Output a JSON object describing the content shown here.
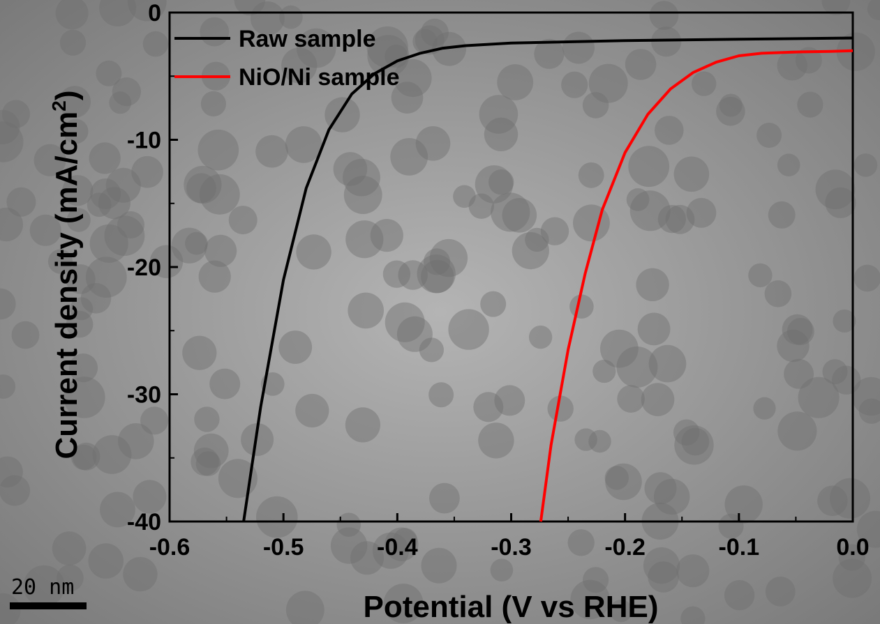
{
  "chart_data": {
    "type": "line",
    "xlabel": "Potential (V vs RHE)",
    "ylabel": "Current density (mA/cm",
    "ylabel_superscript": "2",
    "ylabel_close": ")",
    "xlim": [
      -0.6,
      0.0
    ],
    "ylim": [
      -40,
      0
    ],
    "x_ticks": [
      "-0.6",
      "-0.5",
      "-0.4",
      "-0.3",
      "-0.2",
      "-0.1",
      "0.0"
    ],
    "y_ticks": [
      "0",
      "-10",
      "-20",
      "-30",
      "-40"
    ],
    "grid": false,
    "legend_position": "top-left",
    "series": [
      {
        "name": "Raw sample",
        "color": "#000000",
        "x": [
          -0.535,
          -0.52,
          -0.5,
          -0.48,
          -0.46,
          -0.44,
          -0.42,
          -0.4,
          -0.38,
          -0.36,
          -0.34,
          -0.3,
          -0.25,
          -0.2,
          -0.1,
          0.0
        ],
        "y": [
          -40,
          -31,
          -21,
          -13.8,
          -9.2,
          -6.4,
          -4.8,
          -3.8,
          -3.2,
          -2.8,
          -2.6,
          -2.4,
          -2.3,
          -2.2,
          -2.1,
          -2.0
        ]
      },
      {
        "name": "NiO/Ni sample",
        "color": "#ff0000",
        "x": [
          -0.274,
          -0.265,
          -0.25,
          -0.235,
          -0.22,
          -0.2,
          -0.18,
          -0.16,
          -0.14,
          -0.12,
          -0.1,
          -0.08,
          -0.05,
          -0.02,
          0.0
        ],
        "y": [
          -40,
          -34,
          -26.5,
          -20.5,
          -15.5,
          -11,
          -8,
          -6,
          -4.7,
          -3.9,
          -3.4,
          -3.2,
          -3.1,
          -3.05,
          -3.0
        ]
      }
    ]
  },
  "scale_bar": {
    "label": "20 nm"
  },
  "colors": {
    "background": "#a9a9a9",
    "axes": "#000000"
  }
}
